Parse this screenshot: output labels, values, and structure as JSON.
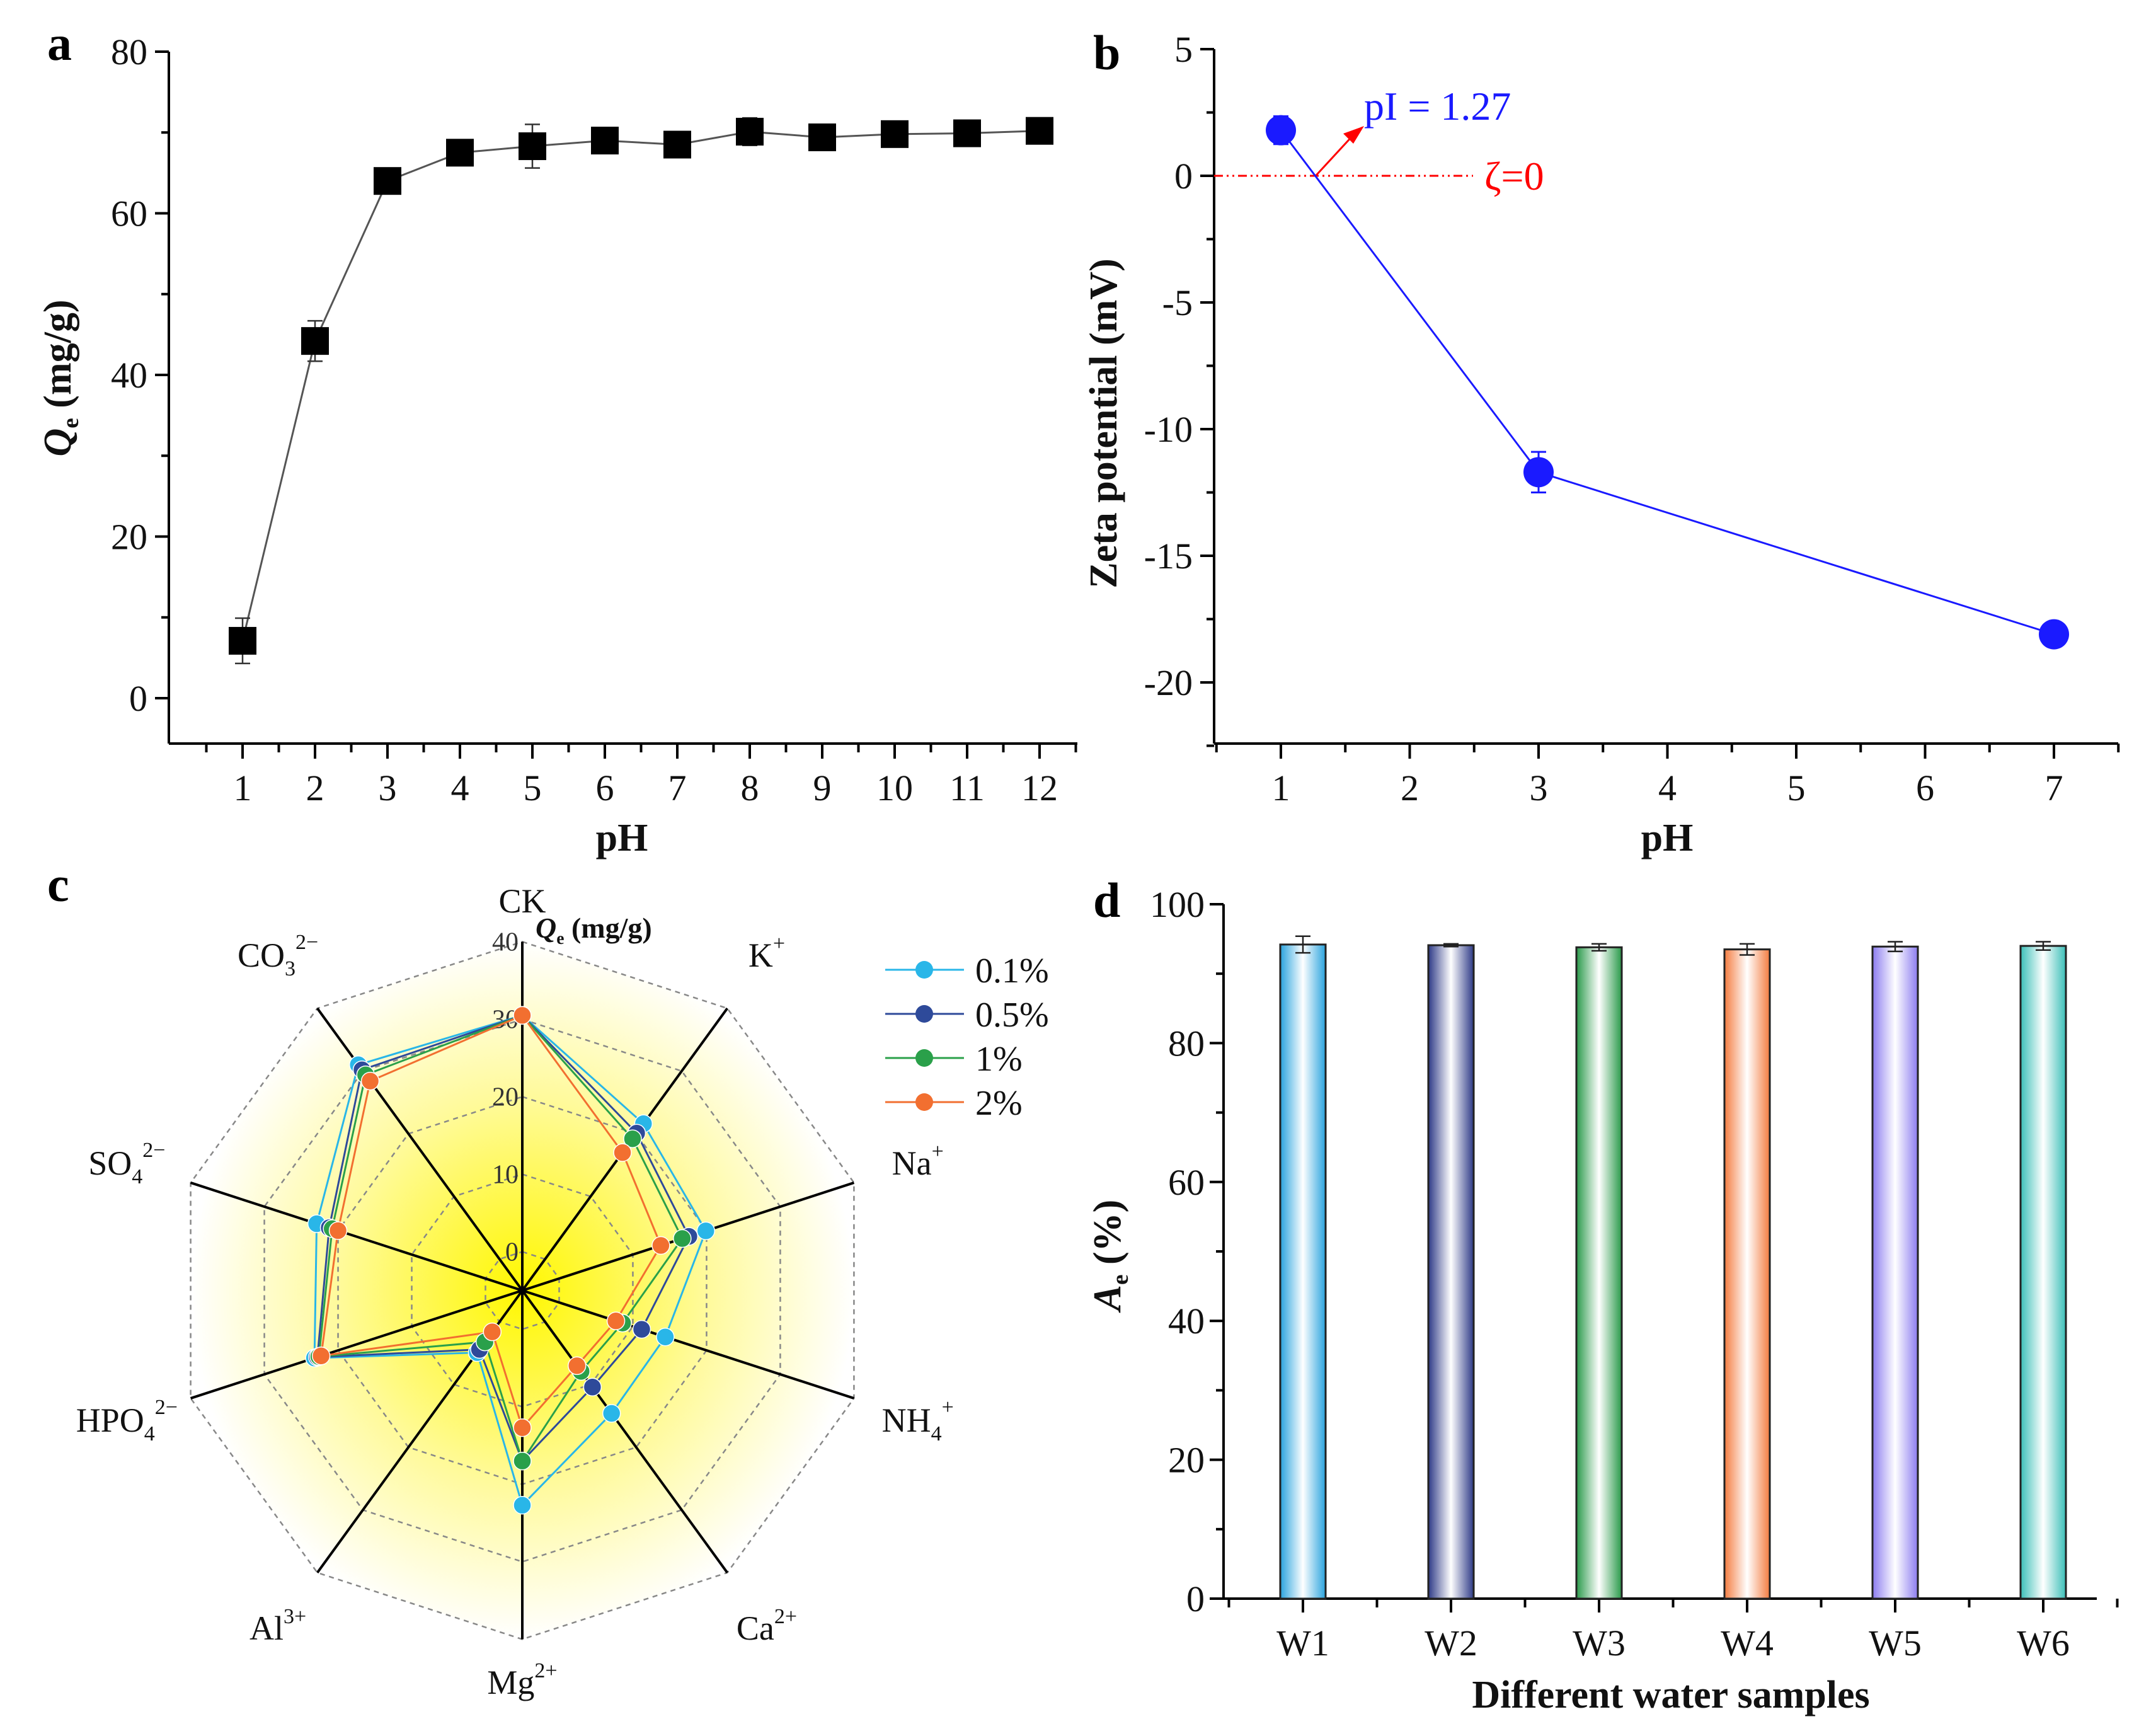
{
  "panels": [
    "a",
    "b",
    "c",
    "d"
  ],
  "chart_data": [
    {
      "id": "a",
      "type": "line",
      "xlabel": "pH",
      "ylabel": {
        "main": "Q",
        "sub": "e",
        "unit": " (mg/g)"
      },
      "x": [
        1,
        2,
        3,
        4,
        5,
        6,
        7,
        8,
        9,
        10,
        11,
        12
      ],
      "y": [
        7.1,
        44.2,
        64.0,
        67.5,
        68.3,
        69.0,
        68.5,
        70.1,
        69.4,
        69.8,
        69.9,
        70.2
      ],
      "yerr": [
        2.8,
        2.5,
        0.4,
        0.6,
        2.7,
        0.5,
        1.3,
        1.7,
        1.1,
        0.7,
        1.0,
        1.1
      ],
      "xlim": [
        0,
        12.5
      ],
      "ylim": [
        -6,
        80
      ],
      "xticks": [
        1,
        2,
        3,
        4,
        5,
        6,
        7,
        8,
        9,
        10,
        11,
        12
      ],
      "yticks": [
        0,
        20,
        40,
        60,
        80
      ],
      "color": "#000000",
      "marker": "square"
    },
    {
      "id": "b",
      "type": "line",
      "xlabel": "pH",
      "ylabel": "Zeta potential (mV)",
      "x": [
        1,
        3,
        7
      ],
      "y": [
        1.8,
        -11.7,
        -18.1
      ],
      "yerr": [
        0.55,
        0.8,
        0.45
      ],
      "xlim": [
        0.5,
        7.5
      ],
      "ylim": [
        -22.5,
        5
      ],
      "xticks": [
        1,
        2,
        3,
        4,
        5,
        6,
        7
      ],
      "yticks": [
        5,
        0,
        -5,
        -10,
        -15,
        -20
      ],
      "color": "#1a1aff",
      "marker": "circle",
      "annotations": {
        "pI": "pI = 1.27",
        "pI_value": 1.27,
        "zeta_line": "ζ=0",
        "zeta_color": "#ff0000"
      }
    },
    {
      "id": "c",
      "type": "radar",
      "title": {
        "main": "Q",
        "sub": "e",
        "unit": " (mg/g)"
      },
      "axes": [
        {
          "base": "CK",
          "sub": "",
          "sup": ""
        },
        {
          "base": "K",
          "sub": "",
          "sup": "+"
        },
        {
          "base": "Na",
          "sub": "",
          "sup": "+"
        },
        {
          "base": "NH",
          "sub": "4",
          "sup": "+"
        },
        {
          "base": "Ca",
          "sub": "",
          "sup": "2+"
        },
        {
          "base": "Mg",
          "sub": "",
          "sup": "2+"
        },
        {
          "base": "Al",
          "sub": "",
          "sup": "3+"
        },
        {
          "base": "HPO",
          "sub": "4",
          "sup": "2−"
        },
        {
          "base": "SO",
          "sub": "4",
          "sup": "2−"
        },
        {
          "base": "CO",
          "sub": "3",
          "sup": "2−"
        }
      ],
      "rlim": [
        -5,
        40
      ],
      "rticks": [
        0,
        10,
        20,
        30,
        40
      ],
      "series": [
        {
          "name": "0.1%",
          "color": "#29b6e8",
          "values": [
            30.5,
            21.6,
            19.9,
            14.4,
            14.6,
            22.7,
            4.9,
            23.2,
            22.9,
            31.0
          ]
        },
        {
          "name": "0.5%",
          "color": "#2e4a9a",
          "values": [
            30.5,
            20.1,
            17.6,
            11.2,
            10.4,
            17.0,
            4.4,
            22.8,
            21.2,
            30.2
          ]
        },
        {
          "name": "1%",
          "color": "#2aa04a",
          "values": [
            30.5,
            19.2,
            16.7,
            8.6,
            7.9,
            17.0,
            3.2,
            22.6,
            20.8,
            29.4
          ]
        },
        {
          "name": "2%",
          "color": "#f26f30",
          "values": [
            30.5,
            17.0,
            13.8,
            7.7,
            7.0,
            12.7,
            1.6,
            22.3,
            20.0,
            28.4
          ]
        }
      ]
    },
    {
      "id": "d",
      "type": "bar",
      "xlabel": "Different water samples",
      "ylabel": {
        "main": "A",
        "sub": "e",
        "unit": " (%)"
      },
      "categories": [
        "W1",
        "W2",
        "W3",
        "W4",
        "W5",
        "W6"
      ],
      "values": [
        94.2,
        94.1,
        93.8,
        93.5,
        93.9,
        94.0
      ],
      "yerr": [
        1.2,
        0.2,
        0.5,
        0.8,
        0.7,
        0.6
      ],
      "colors": [
        "#29a3de",
        "#2e3a87",
        "#2a9a4a",
        "#f47c40",
        "#8c7cf0",
        "#3bbfb8"
      ],
      "ylim": [
        0,
        100
      ],
      "yticks": [
        0,
        20,
        40,
        60,
        80,
        100
      ]
    }
  ]
}
